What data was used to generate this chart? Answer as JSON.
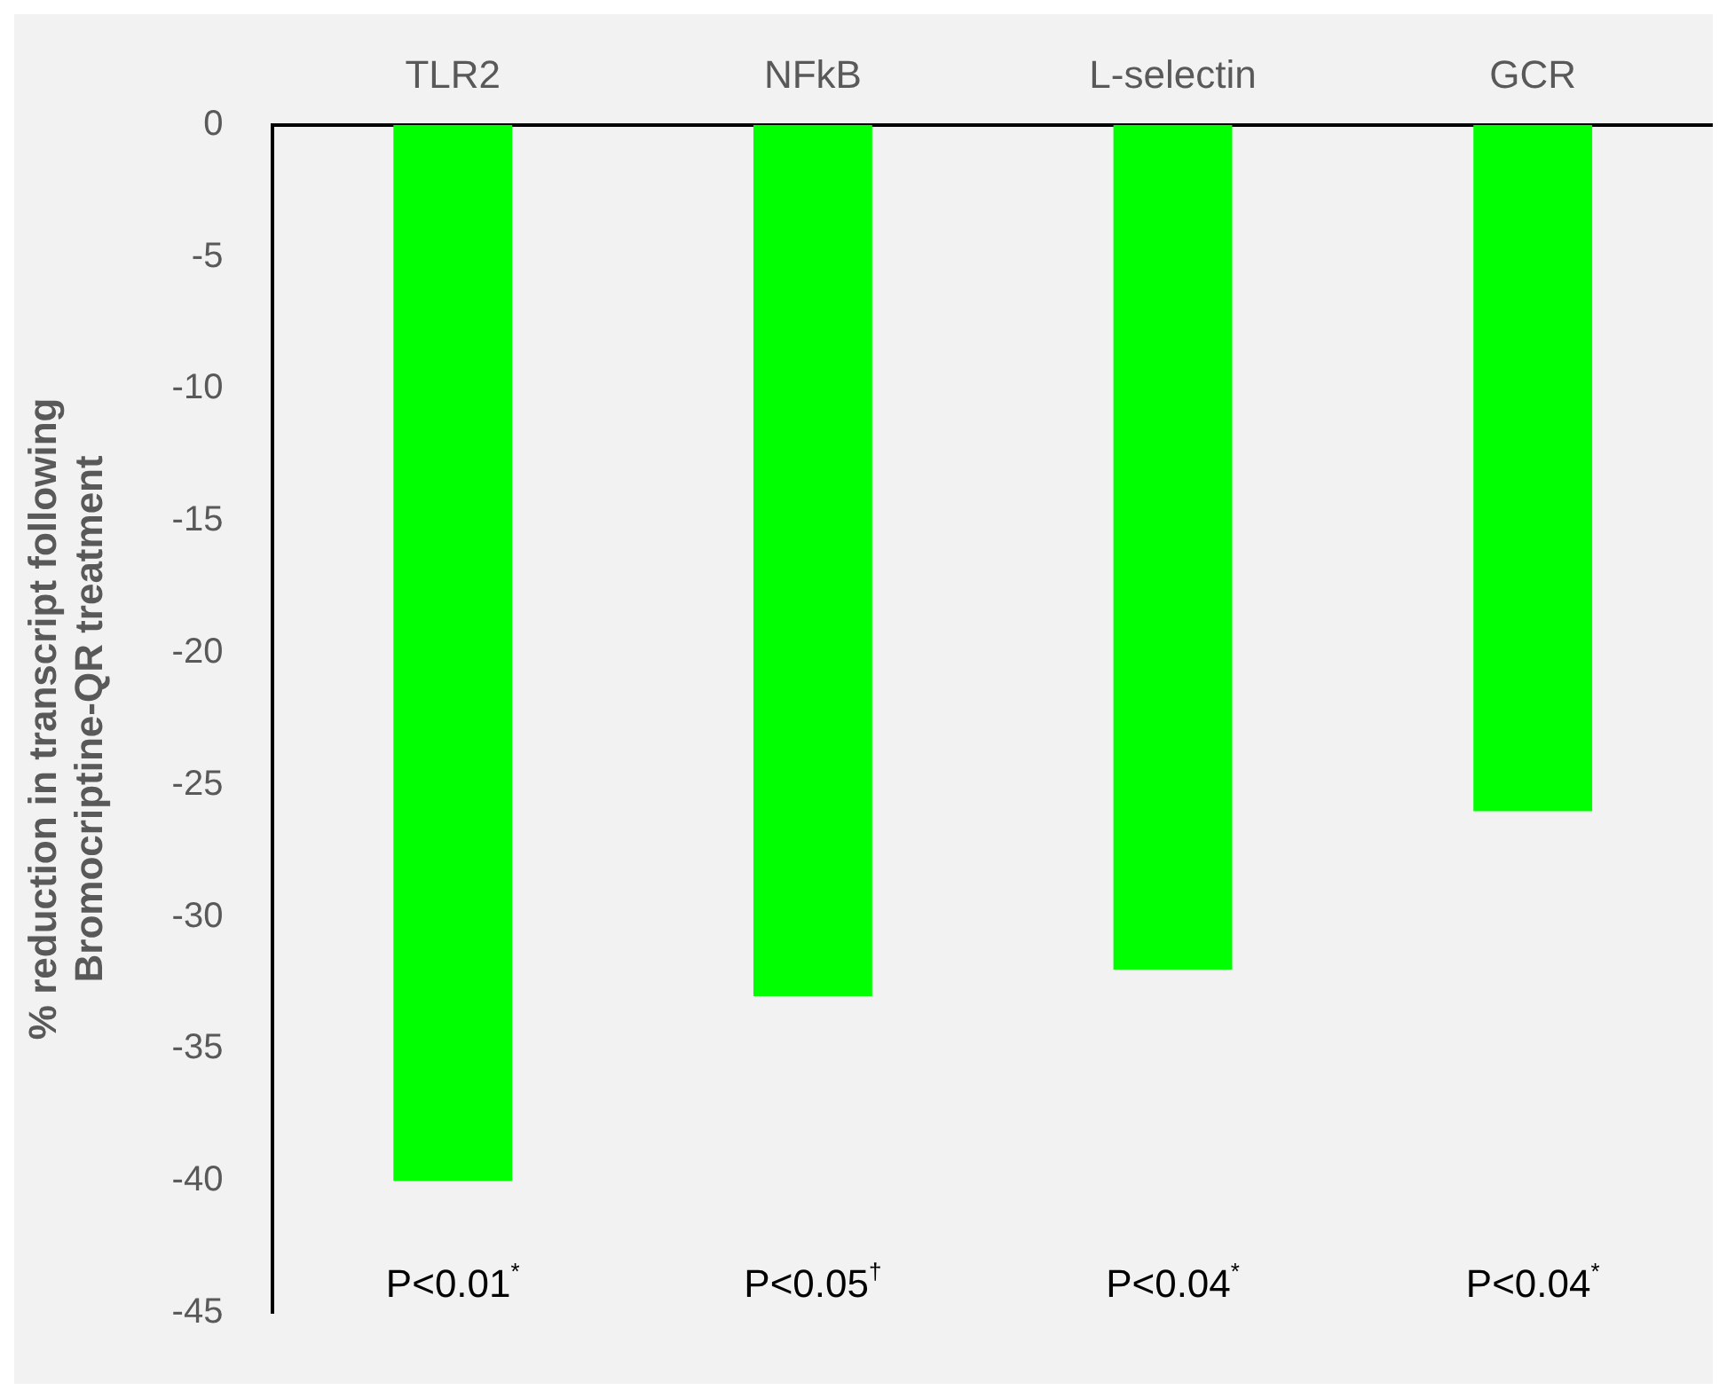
{
  "chart_data": {
    "type": "bar",
    "categories": [
      "TLR2",
      "NFkB",
      "L-selectin",
      "GCR"
    ],
    "series": [
      {
        "color": "#00ff00",
        "values": [
          -40,
          -33,
          -32,
          -26
        ]
      }
    ],
    "ylabel": "% reduction in transcript following\nBromocriptine-QR treatment",
    "ylim": [
      -45,
      0
    ],
    "yticks": [
      0,
      -5,
      -10,
      -15,
      -20,
      -25,
      -30,
      -35,
      -40,
      -45
    ],
    "grid": false,
    "legend": false,
    "annotations": [
      "P<0.01$^{*}$",
      "P<0.05$^{†}$",
      "P<0.04$^{*}$",
      "P<0.04$^{*}$"
    ]
  }
}
